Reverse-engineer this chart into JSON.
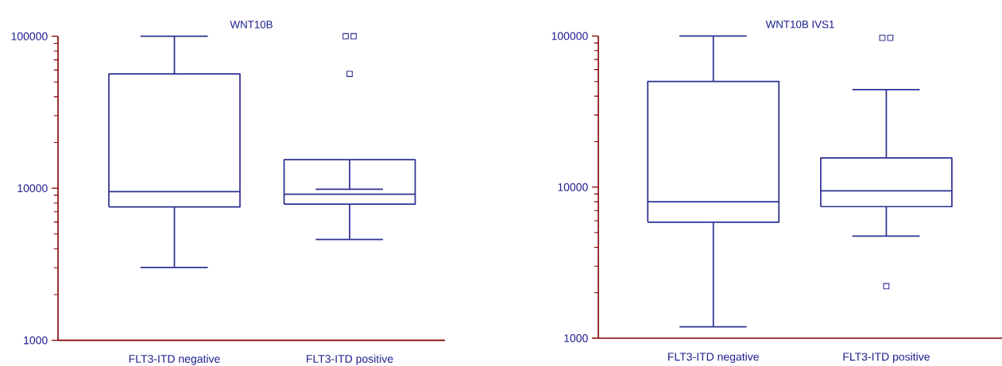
{
  "chart_data": [
    {
      "type": "box",
      "title": "WNT10B",
      "categories": [
        "FLT3-ITD negative",
        "FLT3-ITD positive"
      ],
      "color": "#2e3192",
      "log": true,
      "grid": false,
      "ylim": [
        1000,
        100000
      ],
      "yticks": [
        1000,
        10000,
        100000
      ],
      "boxes": [
        {
          "low": 3010,
          "q1": 7550,
          "median": 9510,
          "q3": 56600,
          "high": 100000
        },
        {
          "low": 4610,
          "q1": 7870,
          "median": 9140,
          "q3": 15400,
          "high": 9840,
          "outliers": [
            100000,
            100000,
            56600
          ]
        }
      ]
    },
    {
      "type": "box",
      "title": "WNT10B IVS1",
      "categories": [
        "FLT3-ITD negative",
        "FLT3-ITD positive"
      ],
      "color": "#2e3192",
      "log": true,
      "grid": false,
      "ylim": [
        1000,
        100000
      ],
      "yticks": [
        1000,
        10000,
        100000
      ],
      "boxes": [
        {
          "low": 1190,
          "q1": 5860,
          "median": 8000,
          "q3": 50000,
          "high": 100000
        },
        {
          "low": 4740,
          "q1": 7430,
          "median": 9460,
          "q3": 15600,
          "high": 44200,
          "outliers": [
            97300,
            97300,
            2210
          ]
        }
      ]
    }
  ]
}
